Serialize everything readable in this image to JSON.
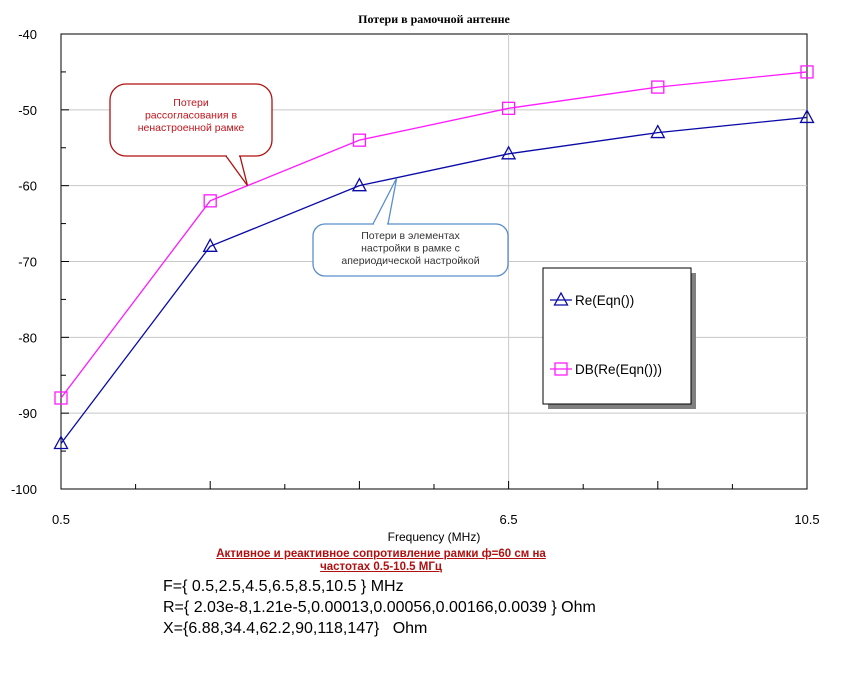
{
  "chart_data": {
    "type": "line",
    "title": "Потери в рамочной антенне",
    "xlabel": "Frequency (MHz)",
    "ylabel": "",
    "xlim": [
      0.5,
      10.5
    ],
    "ylim": [
      -100,
      -40
    ],
    "x_tick_labels": [
      "0.5",
      "6.5",
      "10.5"
    ],
    "x_tick_values": [
      0.5,
      6.5,
      10.5
    ],
    "x_minor_ticks": [
      2.5,
      4.5,
      8.5
    ],
    "y_ticks": [
      -40,
      -50,
      -60,
      -70,
      -80,
      -90,
      -100
    ],
    "grid": true,
    "x": [
      0.5,
      2.5,
      4.5,
      6.5,
      8.5,
      10.5
    ],
    "series": [
      {
        "name": "Re(Eqn())",
        "marker": "triangle",
        "color": "#0a0aa8",
        "values": [
          -94,
          -68,
          -60,
          -55.8,
          -53,
          -51
        ]
      },
      {
        "name": "DB(Re(Eqn()))",
        "marker": "square",
        "color": "#ff1aff",
        "values": [
          -88,
          -62,
          -54,
          -49.8,
          -47,
          -45
        ]
      }
    ],
    "legend_position": "right",
    "annotations": [
      {
        "lines": [
          "Потери",
          "рассогласования в",
          "ненастроенной рамке"
        ],
        "text_color": "#c0141c",
        "border_color": "#b01010",
        "points_to": [
          3.0,
          -60
        ]
      },
      {
        "lines": [
          "Потери в элементах",
          "настройки в рамке с",
          "апериодической настройкой"
        ],
        "text_color": "#333333",
        "border_color": "#5b8fc9",
        "points_to": [
          5.0,
          -59
        ]
      }
    ]
  },
  "caption": "Активное и реактивное  сопротивление рамки ф=60 см на частотах 0.5-10.5 МГц",
  "equations": {
    "F": "F={ 0.5,2.5,4.5,6.5,8.5,10.5 } MHz",
    "R": "R={ 2.03e-8,1.21e-5,0.00013,0.00056,0.00166,0.0039 } Ohm",
    "X": "X={6.88,34.4,62.2,90,118,147}   Ohm"
  }
}
